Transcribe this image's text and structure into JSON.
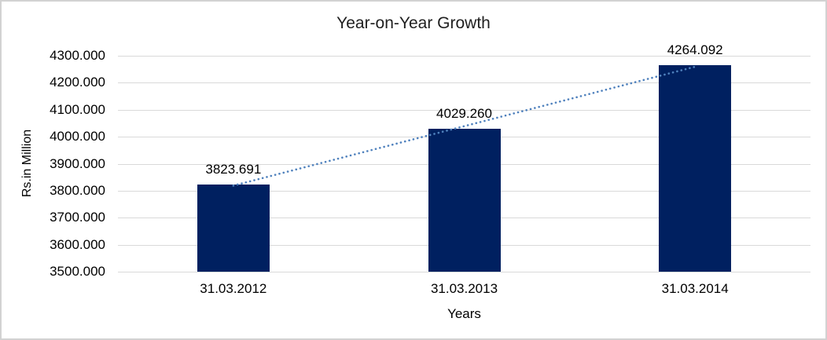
{
  "chart_data": {
    "type": "bar",
    "title": "Year-on-Year Growth",
    "xlabel": "Years",
    "ylabel": "Rs.in Million",
    "categories": [
      "31.03.2012",
      "31.03.2013",
      "31.03.2014"
    ],
    "values": [
      3823.691,
      4029.26,
      4264.092
    ],
    "data_labels": [
      "3823.691",
      "4029.260",
      "4264.092"
    ],
    "ylim": [
      3500,
      4300
    ],
    "ytick_step": 100,
    "ytick_labels": [
      "4300.000",
      "4200.000",
      "4100.000",
      "4000.000",
      "3900.000",
      "3800.000",
      "3700.000",
      "3600.000",
      "3500.000"
    ],
    "grid": true,
    "legend": "none",
    "trendline": {
      "type": "linear",
      "style": "dotted"
    },
    "colors": {
      "bar": "#002060",
      "trendline": "#4f81bd",
      "gridline": "#d9d9d9",
      "text": "#000000",
      "background": "#ffffff",
      "frame": "#d2d2d2"
    }
  }
}
